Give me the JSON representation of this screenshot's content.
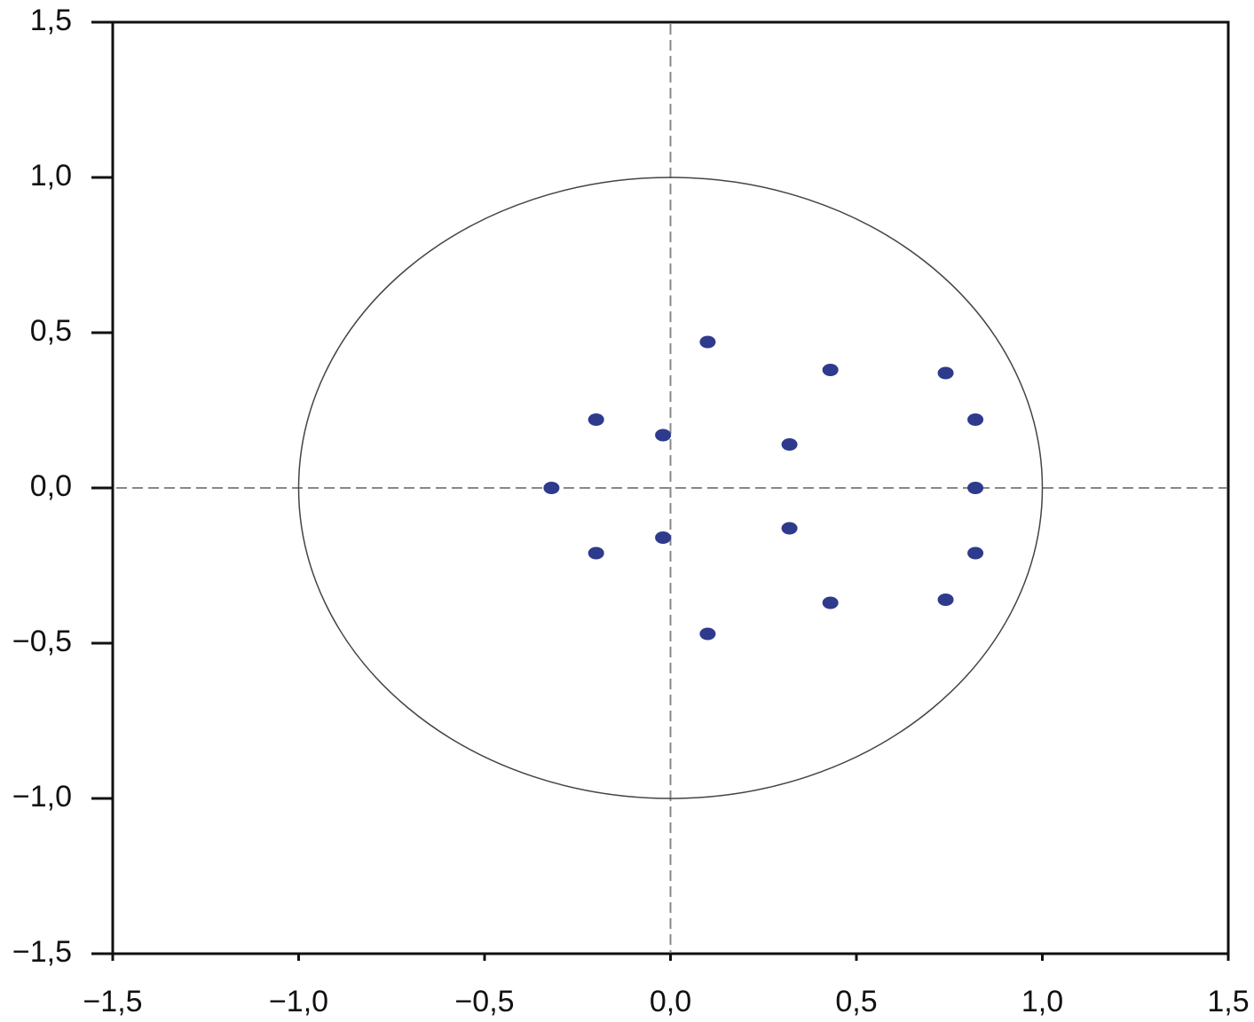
{
  "chart_data": {
    "type": "scatter",
    "x": [
      0.1,
      0.43,
      0.74,
      0.82,
      0.82,
      0.82,
      0.74,
      0.43,
      0.1,
      0.32,
      0.32,
      -0.02,
      -0.02,
      -0.2,
      -0.2,
      -0.32
    ],
    "values": [
      0.47,
      0.38,
      0.37,
      0.22,
      0.0,
      -0.21,
      -0.36,
      -0.37,
      -0.47,
      0.14,
      -0.13,
      0.17,
      -0.16,
      0.22,
      -0.21,
      0.0
    ],
    "color": "#2e3a8c",
    "xlim": [
      -1.5,
      1.5
    ],
    "ylim": [
      -1.5,
      1.5
    ],
    "xticks": [
      {
        "value": -1.5,
        "label": "−1,5"
      },
      {
        "value": -1.0,
        "label": "−1,0"
      },
      {
        "value": -0.5,
        "label": "−0,5"
      },
      {
        "value": 0,
        "label": "0,0"
      },
      {
        "value": 0.5,
        "label": "0,5"
      },
      {
        "value": 1.0,
        "label": "1,0"
      },
      {
        "value": 1.5,
        "label": "1,5"
      }
    ],
    "yticks": [
      {
        "value": -1.5,
        "label": "−1,5"
      },
      {
        "value": -1.0,
        "label": "−1,0"
      },
      {
        "value": -0.5,
        "label": "−0,5"
      },
      {
        "value": 0,
        "label": "0,0"
      },
      {
        "value": 0.5,
        "label": "0,5"
      },
      {
        "value": 1.0,
        "label": "1,0"
      },
      {
        "value": 1.5,
        "label": "1,5"
      }
    ],
    "unit_circle": true,
    "zero_lines": true
  }
}
